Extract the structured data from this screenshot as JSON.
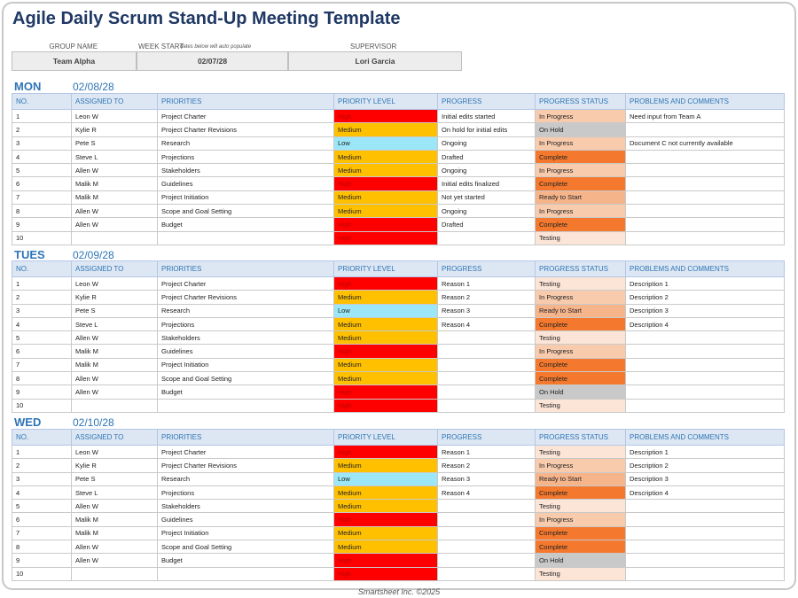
{
  "title": "Agile Daily Scrum Stand-Up Meeting Template",
  "header": {
    "fields": [
      {
        "label": "GROUP NAME",
        "value": "Team Alpha"
      },
      {
        "label": "WEEK START",
        "note": "dates below will auto populate",
        "value": "02/07/28"
      },
      {
        "label": "SUPERVISOR",
        "value": "Lori Garcia"
      }
    ]
  },
  "columns": [
    "NO.",
    "ASSIGNED TO",
    "PRIORITIES",
    "PRIORITY LEVEL",
    "PROGRESS",
    "PROGRESS STATUS",
    "PROBLEMS AND COMMENTS"
  ],
  "level_colors": {
    "High": "#ff0000",
    "Medium": "#ffc000",
    "Low": "#9be7f7"
  },
  "status_colors": {
    "In Progress": "#f8cbad",
    "On Hold": "#c9c9c9",
    "Complete": "#f4792f",
    "Testing": "#fce4d6",
    "Ready to Start": "#f6b48b"
  },
  "days": [
    {
      "day": "MON",
      "date": "02/08/28",
      "rows": [
        [
          "1",
          "Leon W",
          "Project Charter",
          "High",
          "Initial edits started",
          "In Progress",
          "Need input from Team A"
        ],
        [
          "2",
          "Kylie R",
          "Project Charter Revisions",
          "Medium",
          "On hold for initial edits",
          "On Hold",
          null
        ],
        [
          "3",
          "Pete S",
          "Research",
          "Low",
          "Ongoing",
          "In Progress",
          "Document C not currently available"
        ],
        [
          "4",
          "Steve L",
          "Projections",
          "Medium",
          "Drafted",
          "Complete",
          null
        ],
        [
          "5",
          "Allen W",
          "Stakeholders",
          "Medium",
          "Ongoing",
          "In Progress",
          null
        ],
        [
          "6",
          "Malik M",
          "Guidelines",
          "High",
          "Initial edits finalized",
          "Complete",
          null
        ],
        [
          "7",
          "Malik M",
          "Project Initiation",
          "Medium",
          "Not yet started",
          "Ready to Start",
          null
        ],
        [
          "8",
          "Allen W",
          "Scope and Goal Setting",
          "Medium",
          "Ongoing",
          "In Progress",
          null
        ],
        [
          "9",
          "Allen W",
          "Budget",
          "High",
          "Drafted",
          "Complete",
          null
        ],
        [
          "10",
          null,
          null,
          "High",
          null,
          "Testing",
          null
        ]
      ]
    },
    {
      "day": "TUES",
      "date": "02/09/28",
      "rows": [
        [
          "1",
          "Leon W",
          "Project Charter",
          "High",
          "Reason 1",
          "Testing",
          "Description 1"
        ],
        [
          "2",
          "Kylie R",
          "Project Charter Revisions",
          "Medium",
          "Reason 2",
          "In Progress",
          "Description 2"
        ],
        [
          "3",
          "Pete S",
          "Research",
          "Low",
          "Reason 3",
          "Ready to Start",
          "Description 3"
        ],
        [
          "4",
          "Steve L",
          "Projections",
          "Medium",
          "Reason 4",
          "Complete",
          "Description 4"
        ],
        [
          "5",
          "Allen W",
          "Stakeholders",
          "Medium",
          null,
          "Testing",
          null
        ],
        [
          "6",
          "Malik M",
          "Guidelines",
          "High",
          null,
          "In Progress",
          null
        ],
        [
          "7",
          "Malik M",
          "Project Initiation",
          "Medium",
          null,
          "Complete",
          null
        ],
        [
          "8",
          "Allen W",
          "Scope and Goal Setting",
          "Medium",
          null,
          "Complete",
          null
        ],
        [
          "9",
          "Allen W",
          "Budget",
          "High",
          null,
          "On Hold",
          null
        ],
        [
          "10",
          null,
          null,
          "High",
          null,
          "Testing",
          null
        ]
      ]
    },
    {
      "day": "WED",
      "date": "02/10/28",
      "rows": [
        [
          "1",
          "Leon W",
          "Project Charter",
          "High",
          "Reason 1",
          "Testing",
          "Description 1"
        ],
        [
          "2",
          "Kylie R",
          "Project Charter Revisions",
          "Medium",
          "Reason 2",
          "In Progress",
          "Description 2"
        ],
        [
          "3",
          "Pete S",
          "Research",
          "Low",
          "Reason 3",
          "Ready to Start",
          "Description 3"
        ],
        [
          "4",
          "Steve L",
          "Projections",
          "Medium",
          "Reason 4",
          "Complete",
          "Description 4"
        ],
        [
          "5",
          "Allen W",
          "Stakeholders",
          "Medium",
          null,
          "Testing",
          null
        ],
        [
          "6",
          "Malik M",
          "Guidelines",
          "High",
          null,
          "In Progress",
          null
        ],
        [
          "7",
          "Malik M",
          "Project Initiation",
          "Medium",
          null,
          "Complete",
          null
        ],
        [
          "8",
          "Allen W",
          "Scope and Goal Setting",
          "Medium",
          null,
          "Complete",
          null
        ],
        [
          "9",
          "Allen W",
          "Budget",
          "High",
          null,
          "On Hold",
          null
        ],
        [
          "10",
          null,
          null,
          "High",
          null,
          "Testing",
          null
        ]
      ]
    }
  ],
  "footer": "Smartsheet Inc. ©2025"
}
